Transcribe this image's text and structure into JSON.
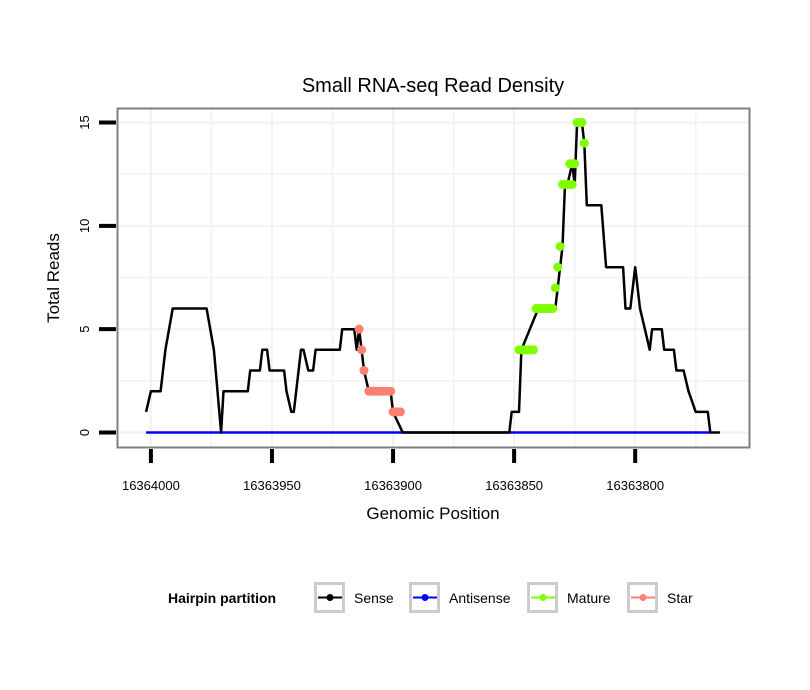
{
  "chart_data": {
    "type": "line",
    "title": "Small RNA-seq Read Density",
    "xlabel": "Genomic Position",
    "ylabel": "Total Reads",
    "xlim": [
      16364014,
      16363753
    ],
    "x_reversed": true,
    "ylim": [
      -0.7,
      15.7
    ],
    "x_ticks": [
      16364000,
      16363950,
      16363900,
      16363850,
      16363800
    ],
    "x_tick_labels": [
      "16364000",
      "16363950",
      "16363900",
      "16363850",
      "16363800"
    ],
    "y_ticks": [
      0,
      5,
      10,
      15
    ],
    "y_tick_labels": [
      "0",
      "5",
      "10",
      "15"
    ],
    "grid": true,
    "legend": {
      "title": "Hairpin partition",
      "position": "bottom",
      "entries": [
        {
          "name": "Sense",
          "color": "#000000"
        },
        {
          "name": "Antisense",
          "color": "#0000ff"
        },
        {
          "name": "Mature",
          "color": "#7fff00"
        },
        {
          "name": "Star",
          "color": "#fa8072"
        }
      ]
    },
    "series": [
      {
        "name": "Sense",
        "color": "#000000",
        "style": "line",
        "x": [
          16364002,
          16364000,
          16363996,
          16363994,
          16363991,
          16363977,
          16363974,
          16363971,
          16363970,
          16363960,
          16363959,
          16363955,
          16363954,
          16363952,
          16363951,
          16363945,
          16363944,
          16363942,
          16363941,
          16363938,
          16363937,
          16363935,
          16363933,
          16363932,
          16363922,
          16363921,
          16363916,
          16363915,
          16363914,
          16363913,
          16363912,
          16363910,
          16363901,
          16363900,
          16363896,
          16363852,
          16363851,
          16363848,
          16363847,
          16363840,
          16363833,
          16363832,
          16363831,
          16363830,
          16363829,
          16363828,
          16363826,
          16363825,
          16363824,
          16363822,
          16363821,
          16363820,
          16363814,
          16363812,
          16363805,
          16363804,
          16363802,
          16363800,
          16363798,
          16363796,
          16363794,
          16363793,
          16363789,
          16363788,
          16363784,
          16363783,
          16363780,
          16363778,
          16363775,
          16363770,
          16363769,
          16363765
        ],
        "y": [
          1,
          2,
          2,
          4,
          6,
          6,
          4,
          0,
          2,
          2,
          3,
          3,
          4,
          4,
          3,
          3,
          2,
          1,
          1,
          4,
          4,
          3,
          3,
          4,
          4,
          5,
          5,
          4,
          5,
          4,
          3,
          2,
          2,
          1,
          0,
          0,
          1,
          1,
          4,
          6,
          6,
          7,
          8,
          9,
          12,
          12,
          13,
          12,
          15,
          15,
          14,
          11,
          11,
          8,
          8,
          6,
          6,
          8,
          6,
          5,
          4,
          5,
          5,
          4,
          4,
          3,
          3,
          2,
          1,
          1,
          0,
          0
        ]
      },
      {
        "name": "Antisense",
        "color": "#0000ff",
        "style": "line",
        "x": [
          16364002,
          16363769
        ],
        "y": [
          0,
          0
        ]
      },
      {
        "name": "Mature",
        "color": "#7fff00",
        "style": "points",
        "x": [
          16363848,
          16363847,
          16363846,
          16363845,
          16363844,
          16363843,
          16363842,
          16363841,
          16363840,
          16363839,
          16363838,
          16363837,
          16363836,
          16363835,
          16363834,
          16363833,
          16363832,
          16363831,
          16363830,
          16363829,
          16363828,
          16363827,
          16363826,
          16363827,
          16363826,
          16363825,
          16363824,
          16363823,
          16363822,
          16363821
        ],
        "y": [
          4,
          4,
          4,
          4,
          4,
          4,
          4,
          6,
          6,
          6,
          6,
          6,
          6,
          6,
          6,
          7,
          8,
          9,
          12,
          12,
          12,
          12,
          12,
          13,
          13,
          13,
          15,
          15,
          15,
          14
        ]
      },
      {
        "name": "Star",
        "color": "#fa8072",
        "style": "points",
        "x": [
          16363914,
          16363913,
          16363912,
          16363910,
          16363909,
          16363908,
          16363907,
          16363906,
          16363905,
          16363904,
          16363903,
          16363902,
          16363901,
          16363900,
          16363899,
          16363898,
          16363897
        ],
        "y": [
          5,
          4,
          3,
          2,
          2,
          2,
          2,
          2,
          2,
          2,
          2,
          2,
          2,
          1,
          1,
          1,
          1
        ]
      }
    ]
  }
}
